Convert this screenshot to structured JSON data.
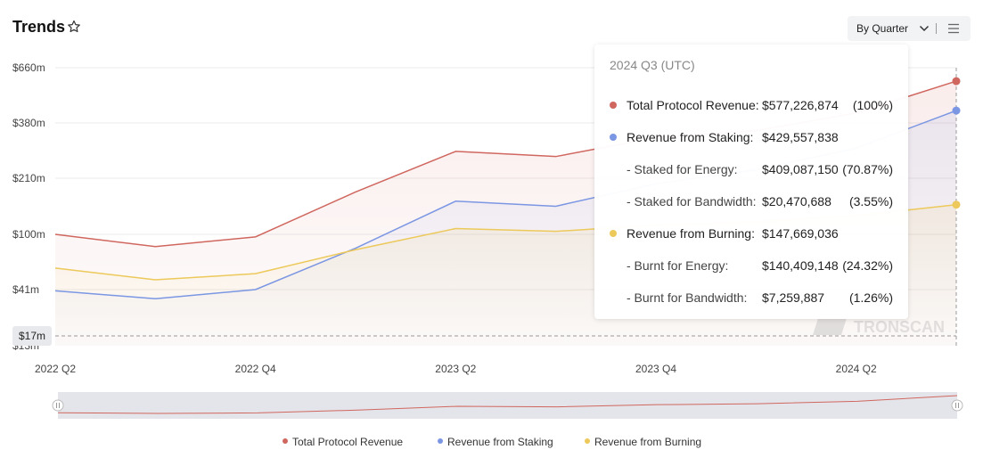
{
  "header": {
    "title": "Trends",
    "period_select": "By Quarter"
  },
  "colors": {
    "total": "#d0675f",
    "staking": "#7b96e3",
    "burning": "#ecc95a",
    "grid": "#ebebeb",
    "axis_text": "#444444"
  },
  "icons": [
    "star-icon",
    "chevron-down-icon",
    "menu-icon",
    "watermark-logo"
  ],
  "watermark": "TRONSCAN",
  "tooltip": {
    "header": "2024 Q3 (UTC)",
    "rows": [
      {
        "label": "Total Protocol Revenue:",
        "value": "$577,226,874",
        "pct": "(100%)",
        "dot": "total"
      },
      {
        "label": "Revenue from Staking:",
        "value": "$429,557,838",
        "pct": "",
        "dot": "staking"
      },
      {
        "label": "- Staked for Energy:",
        "value": "$409,087,150",
        "pct": "(70.87%)",
        "dot": ""
      },
      {
        "label": "- Staked for Bandwidth:",
        "value": "$20,470,688",
        "pct": "(3.55%)",
        "dot": ""
      },
      {
        "label": "Revenue from Burning:",
        "value": "$147,669,036",
        "pct": "",
        "dot": "burning"
      },
      {
        "label": "- Burnt for Energy:",
        "value": "$140,409,148",
        "pct": "(24.32%)",
        "dot": ""
      },
      {
        "label": "- Burnt for Bandwidth:",
        "value": "$7,259,887",
        "pct": "(1.26%)",
        "dot": ""
      }
    ]
  },
  "chart_data": {
    "type": "line",
    "title": "Trends",
    "y_scale": "log",
    "y_ticks": [
      "$660m",
      "$380m",
      "$210m",
      "$100m",
      "$41m",
      "$13m"
    ],
    "crosshair_label": "$17m",
    "x_tick_labels": [
      "2022 Q2",
      "2022 Q4",
      "2023 Q2",
      "2023 Q4",
      "2024 Q2"
    ],
    "categories": [
      "2022 Q2",
      "2022 Q3",
      "2022 Q4",
      "2023 Q1",
      "2023 Q2",
      "2023 Q3",
      "2023 Q4",
      "2024 Q1",
      "2024 Q2",
      "2024 Q3"
    ],
    "series": [
      {
        "name": "Total Protocol Revenue",
        "color_key": "total",
        "values": [
          100,
          82,
          96,
          175,
          280,
          265,
          325,
          350,
          420,
          577
        ]
      },
      {
        "name": "Revenue from Staking",
        "color_key": "staking",
        "values": [
          40,
          34,
          41,
          80,
          155,
          145,
          195,
          230,
          290,
          430
        ]
      },
      {
        "name": "Revenue from Burning",
        "color_key": "burning",
        "values": [
          58,
          48,
          53,
          78,
          108,
          104,
          113,
          118,
          128,
          148
        ]
      }
    ],
    "grid": true,
    "legend_position": "bottom"
  }
}
